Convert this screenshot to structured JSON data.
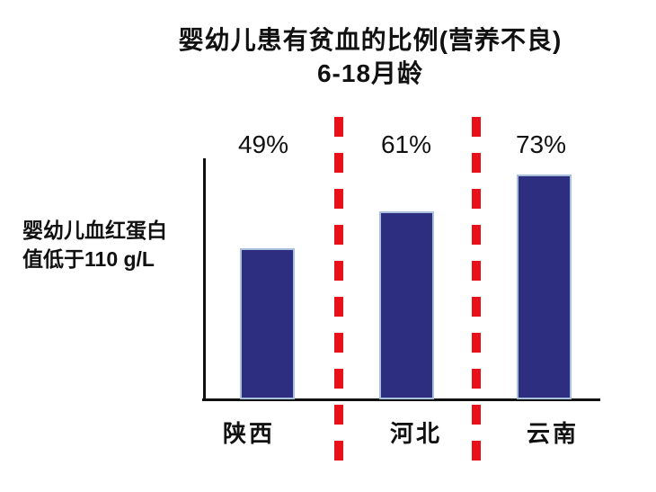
{
  "chart_data": {
    "type": "bar",
    "title": "婴幼儿患有贫血的比例(营养不良)",
    "subtitle": "6-18月龄",
    "ylabel_line1": "婴幼儿血红蛋白",
    "ylabel_line2": "值低于110 g/L",
    "categories": [
      "陕西",
      "河北",
      "云南"
    ],
    "values": [
      49,
      61,
      73
    ],
    "value_labels": [
      "49%",
      "61%",
      "73%"
    ],
    "ylim": [
      0,
      80
    ],
    "grid": false,
    "legend": false,
    "colors": {
      "bar_fill": "#2d2e7f",
      "bar_border": "#a8c0dc",
      "separator_red": "#e8111a",
      "axis": "#111111",
      "text": "#111111",
      "background": "#ffffff"
    }
  }
}
